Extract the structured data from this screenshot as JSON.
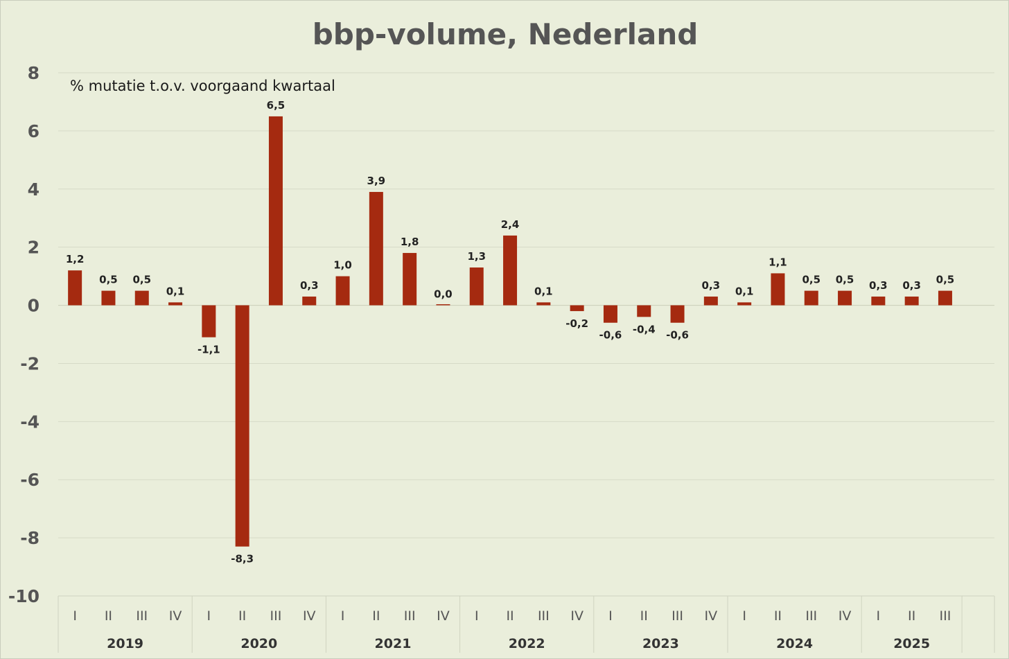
{
  "chart_data": {
    "type": "bar",
    "title": "bbp-volume, Nederland",
    "subtitle": "% mutatie t.o.v. voorgaand kwartaal",
    "ylim": [
      -10,
      8
    ],
    "yticks": [
      8,
      6,
      4,
      2,
      0,
      -2,
      -4,
      -6,
      -8,
      -10
    ],
    "colors": {
      "bar": "#a52a10",
      "background": "#eaeedb"
    },
    "groups": [
      {
        "year": "2019",
        "quarters": [
          "I",
          "II",
          "III",
          "IV"
        ],
        "values": [
          1.2,
          0.5,
          0.5,
          0.1
        ],
        "labels": [
          "1,2",
          "0,5",
          "0,5",
          "0,1"
        ]
      },
      {
        "year": "2020",
        "quarters": [
          "I",
          "II",
          "III",
          "IV"
        ],
        "values": [
          -1.1,
          -8.3,
          6.5,
          0.3
        ],
        "labels": [
          "-1,1",
          "-8,3",
          "6,5",
          "0,3"
        ]
      },
      {
        "year": "2021",
        "quarters": [
          "I",
          "II",
          "III",
          "IV"
        ],
        "values": [
          1.0,
          3.9,
          1.8,
          0.0
        ],
        "labels": [
          "1,0",
          "3,9",
          "1,8",
          "0,0"
        ]
      },
      {
        "year": "2022",
        "quarters": [
          "I",
          "II",
          "III",
          "IV"
        ],
        "values": [
          1.3,
          2.4,
          0.1,
          -0.2
        ],
        "labels": [
          "1,3",
          "2,4",
          "0,1",
          "-0,2"
        ]
      },
      {
        "year": "2023",
        "quarters": [
          "I",
          "II",
          "III",
          "IV"
        ],
        "values": [
          -0.6,
          -0.4,
          -0.6,
          0.3
        ],
        "labels": [
          "-0,6",
          "-0,4",
          "-0,6",
          "0,3"
        ]
      },
      {
        "year": "2024",
        "quarters": [
          "I",
          "II",
          "III",
          "IV"
        ],
        "values": [
          0.1,
          1.1,
          0.5,
          0.5
        ],
        "labels": [
          "0,1",
          "1,1",
          "0,5",
          "0,5"
        ]
      },
      {
        "year": "2025",
        "quarters": [
          "I",
          "II",
          "III"
        ],
        "values": [
          0.3,
          0.3,
          0.5
        ],
        "labels": [
          "0,3",
          "0,3",
          "0,5"
        ]
      }
    ]
  }
}
